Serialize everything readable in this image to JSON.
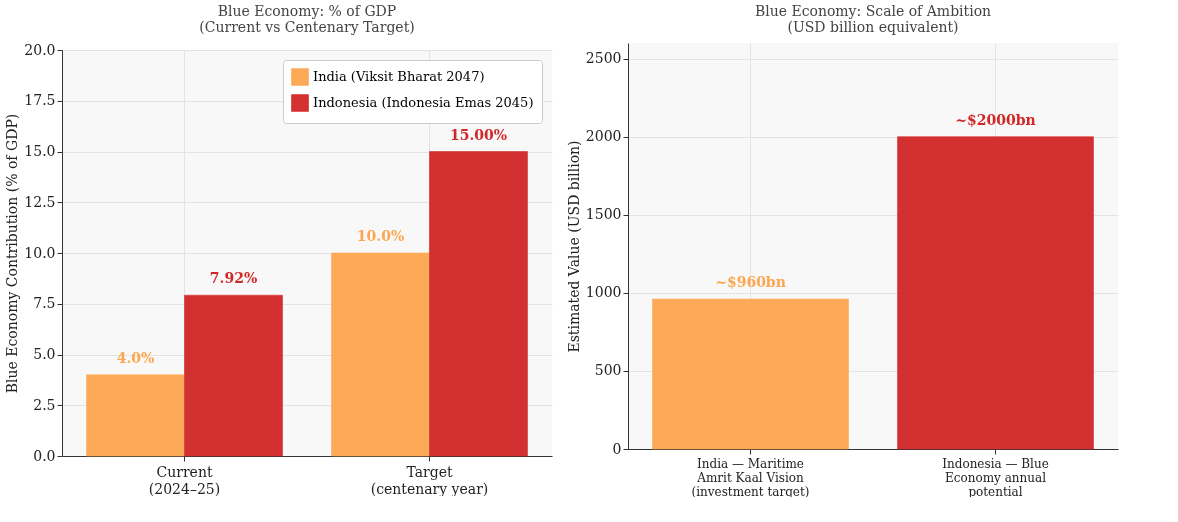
{
  "chart_data": [
    {
      "type": "bar",
      "title": "Blue Economy: % of GDP\n(Current vs Centenary Target)",
      "ylabel": "Blue Economy Contribution (% of GDP)",
      "categories": [
        "Current\n(2024–25)",
        "Target\n(centenary year)"
      ],
      "series": [
        {
          "name": "India (Viksit Bharat 2047)",
          "color": "#fda64f",
          "values": [
            4.0,
            10.0
          ],
          "value_labels": [
            "4.0%",
            "10.0%"
          ]
        },
        {
          "name": "Indonesia (Indonesia Emas 2045)",
          "color": "#d22627",
          "values": [
            7.92,
            15.0
          ],
          "value_labels": [
            "7.92%",
            "15.00%"
          ]
        }
      ],
      "ylim": [
        0,
        20
      ],
      "yticks": [
        {
          "value": 0,
          "label": "0.0"
        },
        {
          "value": 2.5,
          "label": "2.5"
        },
        {
          "value": 5,
          "label": "5.0"
        },
        {
          "value": 7.5,
          "label": "7.5"
        },
        {
          "value": 10,
          "label": "10.0"
        },
        {
          "value": 12.5,
          "label": "12.5"
        },
        {
          "value": 15,
          "label": "15.0"
        },
        {
          "value": 17.5,
          "label": "17.5"
        },
        {
          "value": 20,
          "label": "20.0"
        }
      ],
      "grid": true,
      "legend": "top right"
    },
    {
      "type": "bar",
      "title": "Blue Economy: Scale of Ambition\n(USD billion equivalent)",
      "ylabel": "Estimated Value (USD billion)",
      "categories": [
        "India — Maritime\nAmrit Kaal Vision\n(investment target)",
        "Indonesia — Blue\nEconomy annual\npotential"
      ],
      "values": [
        960,
        2000
      ],
      "colors": [
        "#fda64f",
        "#d22627"
      ],
      "value_labels": [
        "~$960bn",
        "~$2000bn"
      ],
      "ylim": [
        0,
        2600
      ],
      "yticks": [
        0,
        500,
        1000,
        1500,
        2000,
        2500
      ],
      "grid": true
    }
  ]
}
